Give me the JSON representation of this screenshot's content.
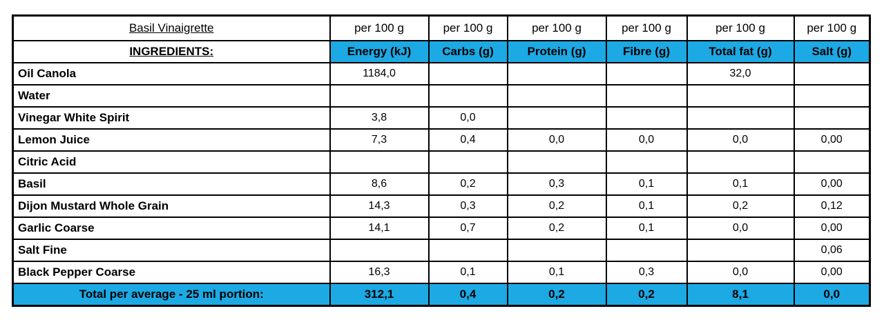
{
  "table": {
    "title": "Basil Vinaigrette",
    "ingredients_label": "INGREDIENTS:",
    "per_unit_label": "per 100 g",
    "columns": [
      "Energy (kJ)",
      "Carbs (g)",
      "Protein (g)",
      "Fibre (g)",
      "Total fat (g)",
      "Salt (g)"
    ],
    "rows": [
      {
        "name": "Oil Canola",
        "values": [
          "1184,0",
          "",
          "",
          "",
          "32,0",
          ""
        ]
      },
      {
        "name": "Water",
        "values": [
          "",
          "",
          "",
          "",
          "",
          ""
        ]
      },
      {
        "name": "Vinegar White Spirit",
        "values": [
          "3,8",
          "0,0",
          "",
          "",
          "",
          ""
        ]
      },
      {
        "name": "Lemon Juice",
        "values": [
          "7,3",
          "0,4",
          "0,0",
          "0,0",
          "0,0",
          "0,00"
        ]
      },
      {
        "name": "Citric Acid",
        "values": [
          "",
          "",
          "",
          "",
          "",
          ""
        ]
      },
      {
        "name": "Basil",
        "values": [
          "8,6",
          "0,2",
          "0,3",
          "0,1",
          "0,1",
          "0,00"
        ]
      },
      {
        "name": "Dijon Mustard Whole Grain",
        "values": [
          "14,3",
          "0,3",
          "0,2",
          "0,1",
          "0,2",
          "0,12"
        ]
      },
      {
        "name": "Garlic Coarse",
        "values": [
          "14,1",
          "0,7",
          "0,2",
          "0,1",
          "0,0",
          "0,00"
        ]
      },
      {
        "name": "Salt Fine",
        "values": [
          "",
          "",
          "",
          "",
          "",
          "0,06"
        ]
      },
      {
        "name": "Black Pepper Coarse",
        "values": [
          "16,3",
          "0,1",
          "0,1",
          "0,3",
          "0,0",
          "0,00"
        ]
      }
    ],
    "total": {
      "label": "Total per average - 25 ml portion:",
      "values": [
        "312,1",
        "0,4",
        "0,2",
        "0,2",
        "8,1",
        "0,0"
      ]
    },
    "colors": {
      "title_bg": "#F8EB5D",
      "header_bg": "#1CA9E4",
      "border": "#000000"
    }
  }
}
